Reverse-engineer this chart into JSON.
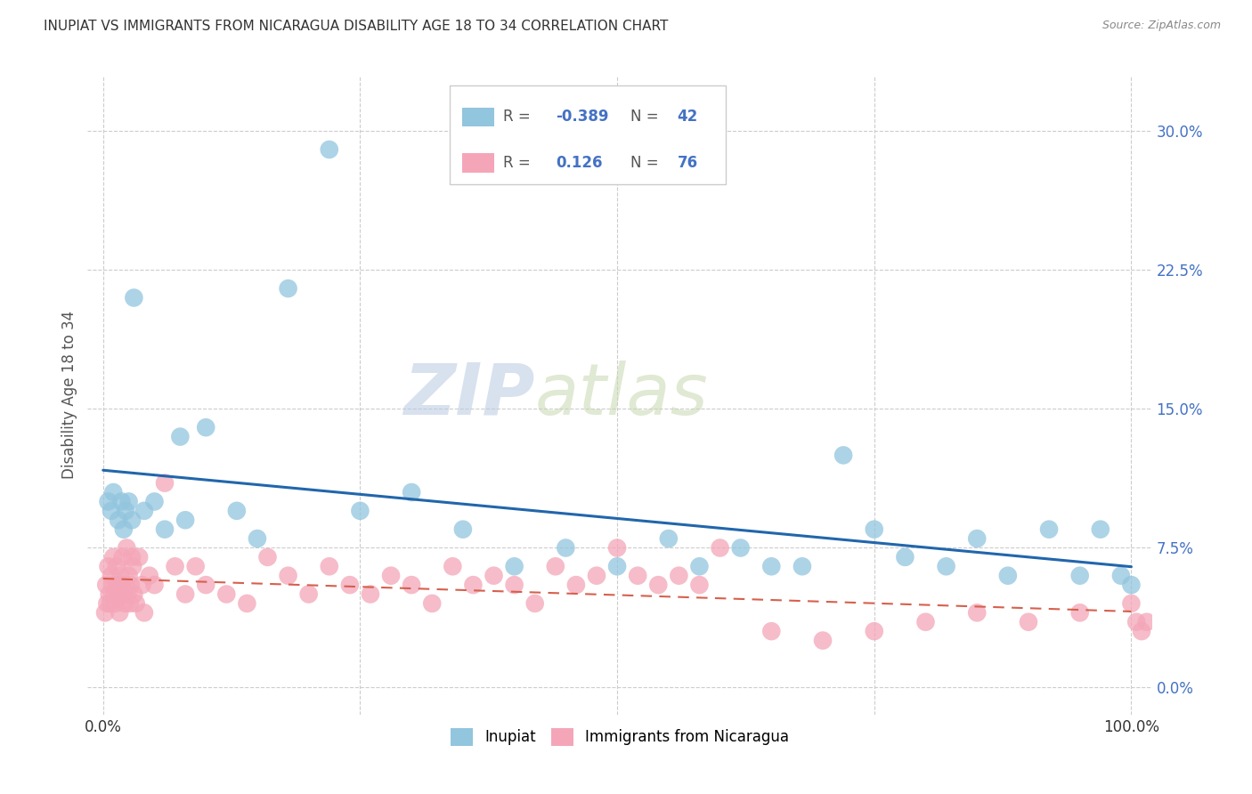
{
  "title": "INUPIAT VS IMMIGRANTS FROM NICARAGUA DISABILITY AGE 18 TO 34 CORRELATION CHART",
  "source": "Source: ZipAtlas.com",
  "ylabel": "Disability Age 18 to 34",
  "ytick_vals": [
    0.0,
    7.5,
    15.0,
    22.5,
    30.0
  ],
  "xlim": [
    -1.5,
    102.0
  ],
  "ylim": [
    -1.5,
    33.0
  ],
  "inupiat_color": "#92c5de",
  "nicaragua_color": "#f4a6b8",
  "inupiat_line_color": "#2166ac",
  "nicaragua_line_color": "#d6604d",
  "background_color": "#ffffff",
  "grid_color": "#cccccc",
  "ytick_color": "#4472c4",
  "watermark_zip": "ZIP",
  "watermark_atlas": "atlas",
  "inupiat_x": [
    0.5,
    0.8,
    1.0,
    1.5,
    1.8,
    2.0,
    2.2,
    2.5,
    2.8,
    3.0,
    4.0,
    5.0,
    6.0,
    7.5,
    8.0,
    10.0,
    13.0,
    15.0,
    18.0,
    22.0,
    25.0,
    30.0,
    35.0,
    40.0,
    45.0,
    50.0,
    55.0,
    58.0,
    62.0,
    65.0,
    68.0,
    72.0,
    75.0,
    78.0,
    82.0,
    85.0,
    88.0,
    92.0,
    95.0,
    97.0,
    99.0,
    100.0
  ],
  "inupiat_y": [
    10.0,
    9.5,
    10.5,
    9.0,
    10.0,
    8.5,
    9.5,
    10.0,
    9.0,
    21.0,
    9.5,
    10.0,
    8.5,
    13.5,
    9.0,
    14.0,
    9.5,
    8.0,
    21.5,
    29.0,
    9.5,
    10.5,
    8.5,
    6.5,
    7.5,
    6.5,
    8.0,
    6.5,
    7.5,
    6.5,
    6.5,
    12.5,
    8.5,
    7.0,
    6.5,
    8.0,
    6.0,
    8.5,
    6.0,
    8.5,
    6.0,
    5.5
  ],
  "nicaragua_x": [
    0.2,
    0.3,
    0.4,
    0.5,
    0.6,
    0.7,
    0.8,
    0.9,
    1.0,
    1.1,
    1.2,
    1.3,
    1.4,
    1.5,
    1.6,
    1.7,
    1.8,
    1.9,
    2.0,
    2.1,
    2.2,
    2.3,
    2.4,
    2.5,
    2.6,
    2.7,
    2.8,
    2.9,
    3.0,
    3.2,
    3.5,
    3.8,
    4.0,
    4.5,
    5.0,
    6.0,
    7.0,
    8.0,
    9.0,
    10.0,
    12.0,
    14.0,
    16.0,
    18.0,
    20.0,
    22.0,
    24.0,
    26.0,
    28.0,
    30.0,
    32.0,
    34.0,
    36.0,
    38.0,
    40.0,
    42.0,
    44.0,
    46.0,
    48.0,
    50.0,
    52.0,
    54.0,
    56.0,
    58.0,
    60.0,
    65.0,
    70.0,
    75.0,
    80.0,
    85.0,
    90.0,
    95.0,
    100.0,
    100.5,
    101.0,
    101.5
  ],
  "nicaragua_y": [
    4.0,
    5.5,
    4.5,
    6.5,
    5.0,
    4.5,
    6.0,
    5.5,
    7.0,
    5.0,
    4.5,
    6.5,
    5.5,
    5.0,
    4.0,
    6.0,
    5.5,
    7.0,
    5.0,
    4.5,
    5.5,
    7.5,
    5.0,
    6.0,
    4.5,
    5.5,
    7.0,
    6.5,
    5.0,
    4.5,
    7.0,
    5.5,
    4.0,
    6.0,
    5.5,
    11.0,
    6.5,
    5.0,
    6.5,
    5.5,
    5.0,
    4.5,
    7.0,
    6.0,
    5.0,
    6.5,
    5.5,
    5.0,
    6.0,
    5.5,
    4.5,
    6.5,
    5.5,
    6.0,
    5.5,
    4.5,
    6.5,
    5.5,
    6.0,
    7.5,
    6.0,
    5.5,
    6.0,
    5.5,
    7.5,
    3.0,
    2.5,
    3.0,
    3.5,
    4.0,
    3.5,
    4.0,
    4.5,
    3.5,
    3.0,
    3.5
  ]
}
